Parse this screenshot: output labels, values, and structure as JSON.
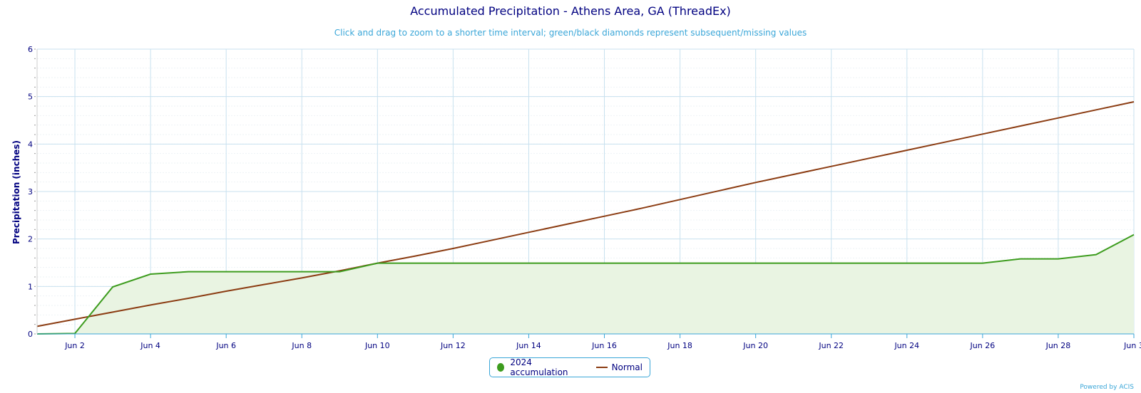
{
  "chart": {
    "title": "Accumulated Precipitation - Athens Area, GA (ThreadEx)",
    "subtitle": "Click and drag to zoom to a shorter time interval; green/black diamonds represent subsequent/missing values",
    "credit": "Powered by ACIS"
  },
  "legend": {
    "items": [
      {
        "label": "2024 accumulation",
        "color": "#3d9c1e",
        "icon": "circle-icon"
      },
      {
        "label": "Normal",
        "color": "#8b3c12",
        "icon": "line-icon"
      }
    ]
  },
  "colors": {
    "grid": "#c8e1ef",
    "axis": "#3aa6d8",
    "text": "#000080",
    "fill": "#e9f4e2"
  },
  "chart_data": {
    "type": "area",
    "title": "Accumulated Precipitation - Athens Area, GA (ThreadEx)",
    "subtitle": "Click and drag to zoom to a shorter time interval; green/black diamonds represent subsequent/missing values",
    "xlabel": "",
    "ylabel": "Precipitation (inches)",
    "ylim": [
      0,
      6
    ],
    "yticks": [
      "0",
      "1",
      "2",
      "3",
      "4",
      "5",
      "6"
    ],
    "xticks": [
      "Jun 2",
      "Jun 4",
      "Jun 6",
      "Jun 8",
      "Jun 10",
      "Jun 12",
      "Jun 14",
      "Jun 16",
      "Jun 18",
      "Jun 20",
      "Jun 22",
      "Jun 24",
      "Jun 26",
      "Jun 28",
      "Jun 3"
    ],
    "x": [
      "Jun 1",
      "Jun 2",
      "Jun 3",
      "Jun 4",
      "Jun 5",
      "Jun 6",
      "Jun 7",
      "Jun 8",
      "Jun 9",
      "Jun 10",
      "Jun 11",
      "Jun 12",
      "Jun 13",
      "Jun 14",
      "Jun 15",
      "Jun 16",
      "Jun 17",
      "Jun 18",
      "Jun 19",
      "Jun 20",
      "Jun 21",
      "Jun 22",
      "Jun 23",
      "Jun 24",
      "Jun 25",
      "Jun 26",
      "Jun 27",
      "Jun 28",
      "Jun 29",
      "Jun 30"
    ],
    "grid": true,
    "legend": "bottom-center",
    "series": [
      {
        "name": "2024 accumulation",
        "type": "area",
        "values": [
          0.0,
          0.01,
          0.99,
          1.26,
          1.31,
          1.31,
          1.31,
          1.31,
          1.31,
          1.49,
          1.49,
          1.49,
          1.49,
          1.49,
          1.49,
          1.49,
          1.49,
          1.49,
          1.49,
          1.49,
          1.49,
          1.49,
          1.49,
          1.49,
          1.49,
          1.49,
          1.58,
          1.58,
          1.67,
          2.09
        ]
      },
      {
        "name": "Normal",
        "type": "line",
        "values": [
          0.16,
          0.31,
          0.46,
          0.61,
          0.75,
          0.9,
          1.04,
          1.18,
          1.33,
          1.49,
          1.64,
          1.8,
          1.97,
          2.14,
          2.31,
          2.48,
          2.65,
          2.83,
          3.01,
          3.19,
          3.36,
          3.53,
          3.7,
          3.87,
          4.04,
          4.21,
          4.38,
          4.55,
          4.72,
          4.89
        ]
      }
    ]
  }
}
